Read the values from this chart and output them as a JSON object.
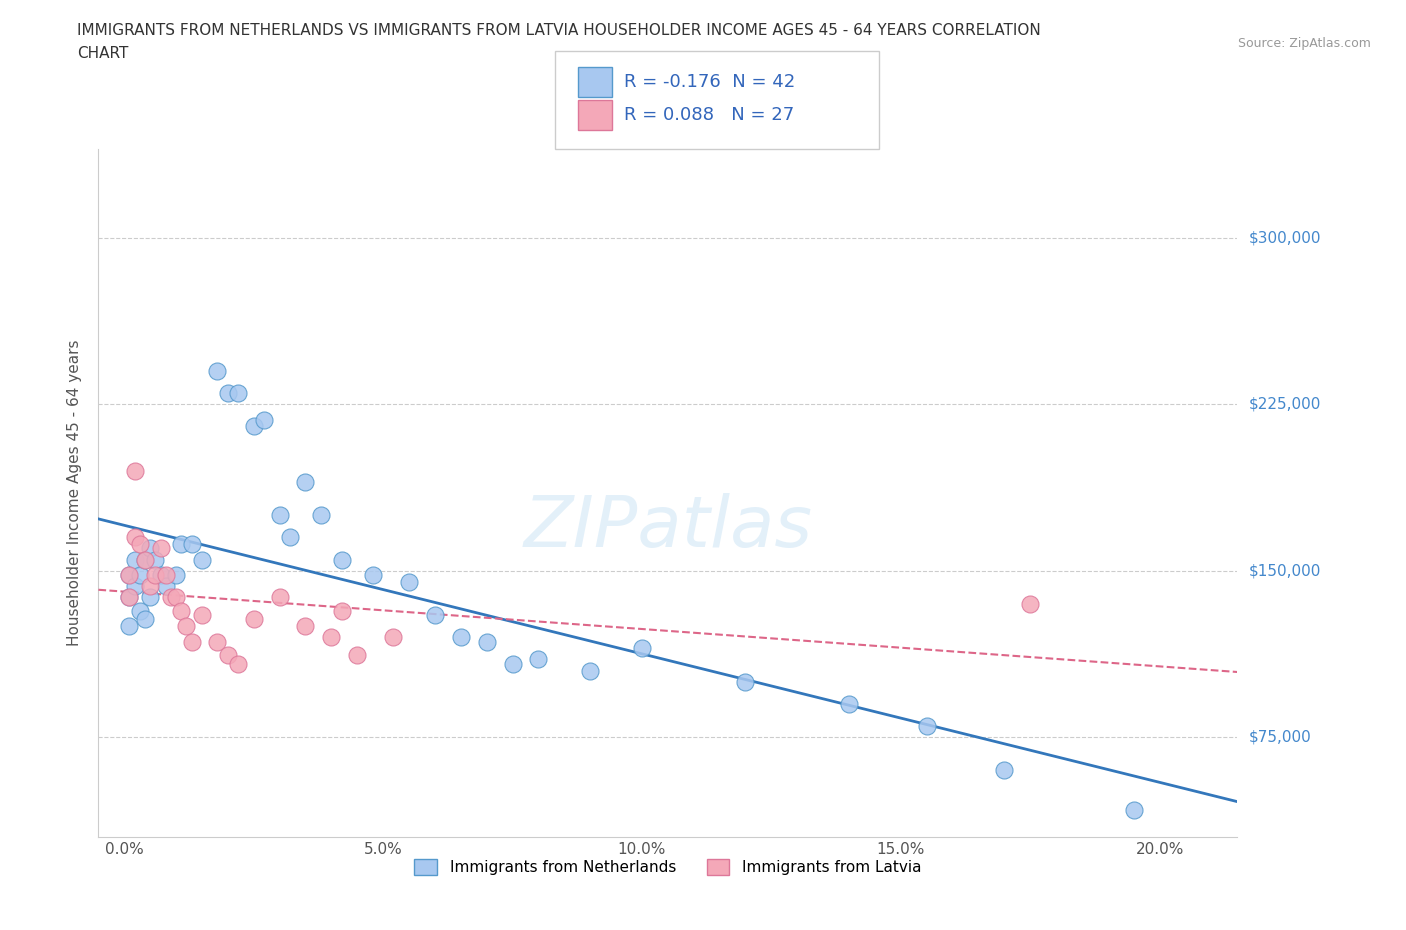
{
  "title_line1": "IMMIGRANTS FROM NETHERLANDS VS IMMIGRANTS FROM LATVIA HOUSEHOLDER INCOME AGES 45 - 64 YEARS CORRELATION",
  "title_line2": "CHART",
  "source": "Source: ZipAtlas.com",
  "ylabel": "Householder Income Ages 45 - 64 years",
  "xlabel_ticks": [
    "0.0%",
    "5.0%",
    "10.0%",
    "15.0%",
    "20.0%"
  ],
  "xlabel_vals": [
    0.0,
    0.05,
    0.1,
    0.15,
    0.2
  ],
  "ytick_labels": [
    "$75,000",
    "$150,000",
    "$225,000",
    "$300,000"
  ],
  "ytick_vals": [
    75000,
    150000,
    225000,
    300000
  ],
  "xlim": [
    -0.005,
    0.215
  ],
  "ylim": [
    30000,
    340000
  ],
  "R_netherlands": -0.176,
  "N_netherlands": 42,
  "R_latvia": 0.088,
  "N_latvia": 27,
  "netherlands_color": "#a8c8f0",
  "latvia_color": "#f4a8b8",
  "netherlands_edge_color": "#5599cc",
  "latvia_edge_color": "#dd7799",
  "netherlands_line_color": "#3377bb",
  "latvia_line_color": "#dd6688",
  "watermark": "ZIPatlas",
  "legend_label_netherlands": "Immigrants from Netherlands",
  "legend_label_latvia": "Immigrants from Latvia",
  "netherlands_x": [
    0.001,
    0.001,
    0.001,
    0.002,
    0.002,
    0.003,
    0.003,
    0.004,
    0.004,
    0.005,
    0.005,
    0.006,
    0.007,
    0.008,
    0.01,
    0.011,
    0.013,
    0.015,
    0.018,
    0.02,
    0.022,
    0.025,
    0.027,
    0.03,
    0.032,
    0.035,
    0.038,
    0.042,
    0.048,
    0.055,
    0.06,
    0.065,
    0.07,
    0.075,
    0.08,
    0.09,
    0.1,
    0.12,
    0.14,
    0.155,
    0.17,
    0.195
  ],
  "netherlands_y": [
    148000,
    138000,
    125000,
    155000,
    143000,
    148000,
    132000,
    155000,
    128000,
    160000,
    138000,
    155000,
    148000,
    143000,
    148000,
    162000,
    162000,
    155000,
    240000,
    230000,
    230000,
    215000,
    218000,
    175000,
    165000,
    190000,
    175000,
    155000,
    148000,
    145000,
    130000,
    120000,
    118000,
    108000,
    110000,
    105000,
    115000,
    100000,
    90000,
    80000,
    60000,
    42000
  ],
  "latvia_x": [
    0.001,
    0.001,
    0.002,
    0.002,
    0.003,
    0.004,
    0.005,
    0.006,
    0.007,
    0.008,
    0.009,
    0.01,
    0.011,
    0.012,
    0.013,
    0.015,
    0.018,
    0.02,
    0.022,
    0.025,
    0.03,
    0.035,
    0.04,
    0.042,
    0.045,
    0.052,
    0.175
  ],
  "latvia_y": [
    148000,
    138000,
    195000,
    165000,
    162000,
    155000,
    143000,
    148000,
    160000,
    148000,
    138000,
    138000,
    132000,
    125000,
    118000,
    130000,
    118000,
    112000,
    108000,
    128000,
    138000,
    125000,
    120000,
    132000,
    112000,
    120000,
    135000
  ]
}
